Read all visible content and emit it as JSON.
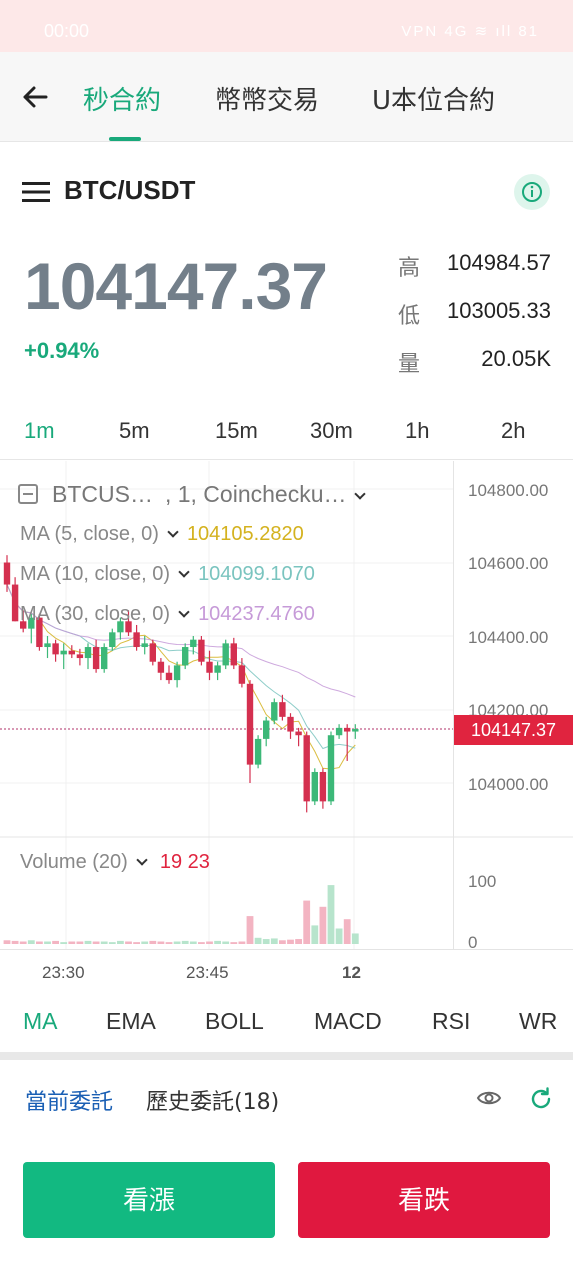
{
  "status_bar": {
    "time": "00:00",
    "icons": "VPN 4G ≋ ıll 81"
  },
  "nav": {
    "tabs": [
      "秒合約",
      "幣幣交易",
      "U本位合約"
    ],
    "active_tab": 0
  },
  "pair": {
    "name": "BTC/USDT"
  },
  "ticker": {
    "price": "104147.37",
    "change": "+0.94%",
    "high_label": "高",
    "high_value": "104984.57",
    "low_label": "低",
    "low_value": "103005.33",
    "vol_label": "量",
    "vol_value": "20.05K"
  },
  "intervals": [
    "1m",
    "5m",
    "15m",
    "30m",
    "1h",
    "2h"
  ],
  "chart": {
    "symbol_label": "BTCUS…",
    "symbol_rest": ", 1, Coincheck​u…",
    "ma_lines": [
      {
        "label": "MA (5, close, 0)",
        "value": "104105.2820",
        "color": "#d4b21f"
      },
      {
        "label": "MA (10, close, 0)",
        "value": "104099.1070",
        "color": "#7ac4bf"
      },
      {
        "label": "MA (30, close, 0)",
        "value": "104237.4760",
        "color": "#c69ad8"
      }
    ],
    "price_axis": [
      "104800.00",
      "104600.00",
      "104400.00",
      "104200.00",
      "104000.00"
    ],
    "last_price_tag": "104147.37",
    "volume_label": "Volume (20)",
    "volume_values": "19 23",
    "volume_axis": [
      "100",
      "0"
    ],
    "time_axis": [
      "23:30",
      "23:45",
      "12"
    ],
    "up_color": "#3cb878",
    "down_color": "#d4304f"
  },
  "chart_data": {
    "type": "candlestick",
    "ylim": [
      103900,
      104900
    ],
    "candles": [
      [
        104600,
        104620,
        104520,
        104540
      ],
      [
        104540,
        104560,
        104440,
        104440
      ],
      [
        104440,
        104470,
        104410,
        104420
      ],
      [
        104420,
        104460,
        104380,
        104450
      ],
      [
        104450,
        104460,
        104360,
        104370
      ],
      [
        104370,
        104400,
        104340,
        104380
      ],
      [
        104380,
        104390,
        104330,
        104350
      ],
      [
        104350,
        104380,
        104310,
        104360
      ],
      [
        104360,
        104375,
        104340,
        104350
      ],
      [
        104350,
        104365,
        104320,
        104340
      ],
      [
        104340,
        104380,
        104310,
        104370
      ],
      [
        104370,
        104390,
        104300,
        104310
      ],
      [
        104310,
        104380,
        104300,
        104370
      ],
      [
        104370,
        104420,
        104360,
        104410
      ],
      [
        104410,
        104450,
        104390,
        104440
      ],
      [
        104440,
        104470,
        104400,
        104410
      ],
      [
        104410,
        104430,
        104360,
        104370
      ],
      [
        104370,
        104400,
        104350,
        104380
      ],
      [
        104380,
        104390,
        104320,
        104330
      ],
      [
        104330,
        104340,
        104280,
        104300
      ],
      [
        104300,
        104320,
        104270,
        104280
      ],
      [
        104280,
        104330,
        104260,
        104320
      ],
      [
        104320,
        104380,
        104310,
        104370
      ],
      [
        104370,
        104400,
        104350,
        104390
      ],
      [
        104390,
        104400,
        104320,
        104330
      ],
      [
        104330,
        104360,
        104280,
        104300
      ],
      [
        104300,
        104330,
        104280,
        104320
      ],
      [
        104320,
        104390,
        104310,
        104380
      ],
      [
        104380,
        104395,
        104310,
        104320
      ],
      [
        104320,
        104340,
        104260,
        104270
      ],
      [
        104270,
        104280,
        104000,
        104050
      ],
      [
        104050,
        104130,
        104040,
        104120
      ],
      [
        104120,
        104180,
        104100,
        104170
      ],
      [
        104170,
        104230,
        104160,
        104220
      ],
      [
        104220,
        104240,
        104170,
        104180
      ],
      [
        104180,
        104190,
        104120,
        104140
      ],
      [
        104140,
        104150,
        104100,
        104130
      ],
      [
        104130,
        104140,
        103920,
        103950
      ],
      [
        103950,
        104040,
        103940,
        104030
      ],
      [
        104030,
        104040,
        103930,
        103950
      ],
      [
        103950,
        104140,
        103940,
        104130
      ],
      [
        104130,
        104160,
        104120,
        104150
      ],
      [
        104150,
        104160,
        104060,
        104140
      ],
      [
        104140,
        104160,
        104120,
        104147
      ]
    ],
    "volumes": [
      6,
      5,
      4,
      6,
      4,
      4,
      5,
      3,
      4,
      4,
      5,
      4,
      4,
      3,
      5,
      4,
      3,
      4,
      5,
      4,
      3,
      4,
      5,
      4,
      3,
      4,
      5,
      4,
      3,
      4,
      45,
      10,
      8,
      9,
      6,
      7,
      8,
      70,
      30,
      60,
      95,
      25,
      40,
      17
    ]
  },
  "indicators": [
    "MA",
    "EMA",
    "BOLL",
    "MACD",
    "RSI",
    "WR"
  ],
  "orders": {
    "tabs": [
      "當前委託",
      "歷史委託(18)"
    ],
    "active_tab": 0
  },
  "actions": {
    "up_label": "看漲",
    "down_label": "看跌"
  }
}
